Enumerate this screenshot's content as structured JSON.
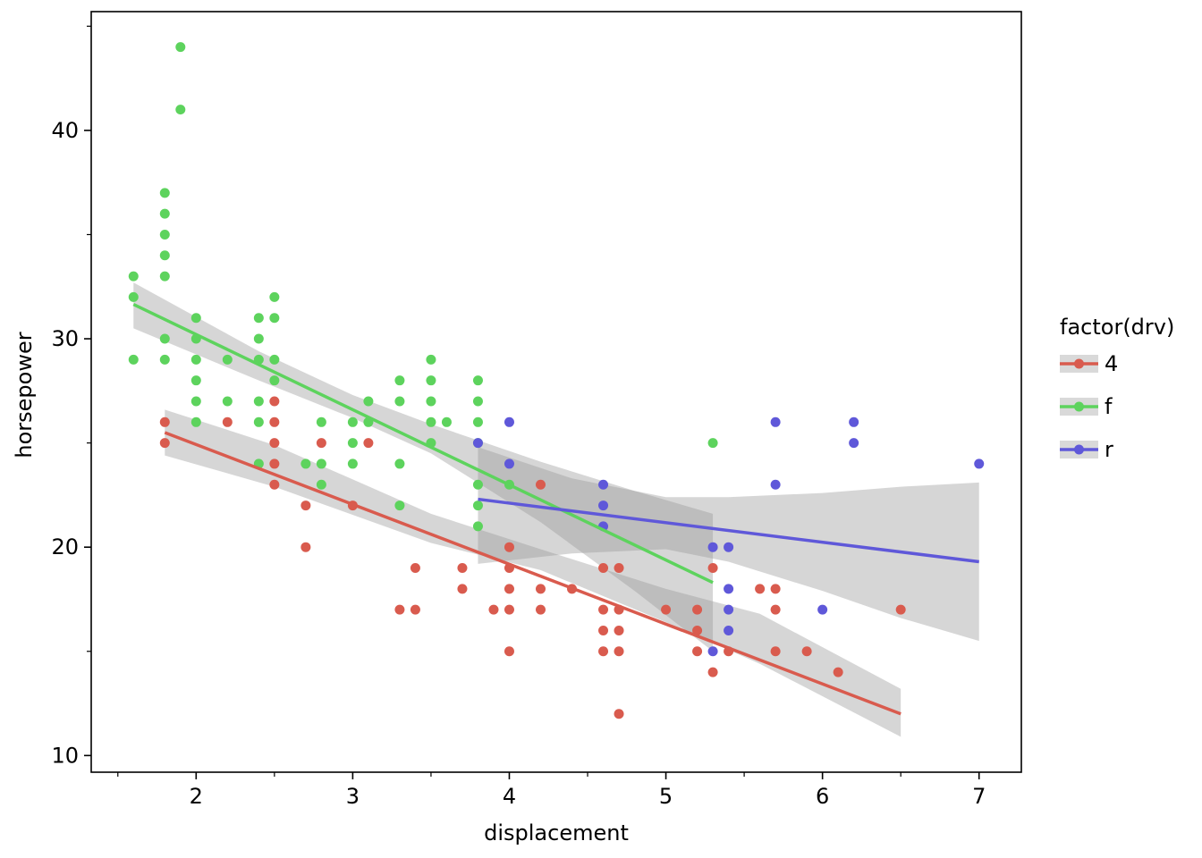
{
  "chart_data": {
    "type": "scatter",
    "title": "",
    "xlabel": "displacement",
    "ylabel": "horsepower",
    "xlim": [
      1.33,
      7.27
    ],
    "ylim": [
      9.2,
      45.7
    ],
    "x_ticks": [
      2,
      3,
      4,
      5,
      6,
      7
    ],
    "x_minor_ticks": [
      1.5,
      2.5,
      3.5,
      4.5,
      5.5,
      6.5
    ],
    "y_ticks": [
      10,
      20,
      30,
      40
    ],
    "y_minor_ticks": [
      15,
      25,
      35,
      45
    ],
    "grid": false,
    "legend": {
      "title": "factor(drv)",
      "position": "right"
    },
    "series": [
      {
        "name": "4",
        "color": "#d95b4e",
        "points": [
          [
            1.8,
            26
          ],
          [
            1.8,
            25
          ],
          [
            2.2,
            26
          ],
          [
            2.5,
            27
          ],
          [
            2.5,
            26
          ],
          [
            2.5,
            25
          ],
          [
            2.5,
            24
          ],
          [
            2.5,
            23
          ],
          [
            2.7,
            22
          ],
          [
            2.7,
            20
          ],
          [
            2.8,
            25
          ],
          [
            3.0,
            22
          ],
          [
            3.1,
            25
          ],
          [
            3.3,
            17
          ],
          [
            3.4,
            19
          ],
          [
            3.4,
            17
          ],
          [
            3.7,
            19
          ],
          [
            3.7,
            18
          ],
          [
            3.9,
            17
          ],
          [
            4.0,
            20
          ],
          [
            4.0,
            19
          ],
          [
            4.0,
            18
          ],
          [
            4.0,
            17
          ],
          [
            4.0,
            15
          ],
          [
            4.2,
            23
          ],
          [
            4.2,
            18
          ],
          [
            4.2,
            17
          ],
          [
            4.4,
            18
          ],
          [
            4.6,
            19
          ],
          [
            4.6,
            17
          ],
          [
            4.6,
            16
          ],
          [
            4.6,
            15
          ],
          [
            4.7,
            19
          ],
          [
            4.7,
            17
          ],
          [
            4.7,
            16
          ],
          [
            4.7,
            15
          ],
          [
            4.7,
            12
          ],
          [
            5.0,
            17
          ],
          [
            5.2,
            17
          ],
          [
            5.2,
            16
          ],
          [
            5.2,
            15
          ],
          [
            5.3,
            19
          ],
          [
            5.3,
            14
          ],
          [
            5.4,
            15
          ],
          [
            5.6,
            18
          ],
          [
            5.7,
            18
          ],
          [
            5.7,
            17
          ],
          [
            5.7,
            15
          ],
          [
            5.9,
            15
          ],
          [
            6.1,
            14
          ],
          [
            6.5,
            17
          ]
        ],
        "fit": {
          "x1": 1.8,
          "y1": 25.5,
          "x2": 6.5,
          "y2": 12.0
        },
        "ci": [
          [
            1.8,
            26.6,
            24.4
          ],
          [
            2.5,
            24.9,
            22.9
          ],
          [
            3.5,
            21.6,
            20.2
          ],
          [
            4.2,
            19.9,
            18.9
          ],
          [
            5.0,
            18.0,
            16.4
          ],
          [
            5.6,
            16.8,
            14.4
          ],
          [
            6.5,
            13.2,
            10.9
          ]
        ]
      },
      {
        "name": "f",
        "color": "#5dd35d",
        "points": [
          [
            1.6,
            33
          ],
          [
            1.6,
            32
          ],
          [
            1.6,
            29
          ],
          [
            1.8,
            37
          ],
          [
            1.8,
            36
          ],
          [
            1.8,
            35
          ],
          [
            1.8,
            34
          ],
          [
            1.8,
            33
          ],
          [
            1.8,
            30
          ],
          [
            1.8,
            29
          ],
          [
            1.9,
            44
          ],
          [
            1.9,
            41
          ],
          [
            2.0,
            31
          ],
          [
            2.0,
            30
          ],
          [
            2.0,
            29
          ],
          [
            2.0,
            28
          ],
          [
            2.0,
            27
          ],
          [
            2.0,
            26
          ],
          [
            2.2,
            29
          ],
          [
            2.2,
            27
          ],
          [
            2.4,
            31
          ],
          [
            2.4,
            30
          ],
          [
            2.4,
            29
          ],
          [
            2.4,
            27
          ],
          [
            2.4,
            26
          ],
          [
            2.4,
            24
          ],
          [
            2.5,
            32
          ],
          [
            2.5,
            31
          ],
          [
            2.5,
            29
          ],
          [
            2.5,
            28
          ],
          [
            2.8,
            26
          ],
          [
            2.8,
            24
          ],
          [
            2.8,
            23
          ],
          [
            2.7,
            24
          ],
          [
            3.0,
            26
          ],
          [
            3.0,
            25
          ],
          [
            3.0,
            24
          ],
          [
            3.1,
            27
          ],
          [
            3.1,
            26
          ],
          [
            3.3,
            28
          ],
          [
            3.3,
            27
          ],
          [
            3.3,
            24
          ],
          [
            3.3,
            22
          ],
          [
            3.5,
            29
          ],
          [
            3.5,
            28
          ],
          [
            3.5,
            27
          ],
          [
            3.5,
            26
          ],
          [
            3.5,
            25
          ],
          [
            3.6,
            26
          ],
          [
            3.8,
            28
          ],
          [
            3.8,
            27
          ],
          [
            3.8,
            26
          ],
          [
            3.8,
            25
          ],
          [
            3.8,
            23
          ],
          [
            3.8,
            22
          ],
          [
            3.8,
            21
          ],
          [
            4.0,
            23
          ],
          [
            5.3,
            25
          ]
        ],
        "fit": {
          "x1": 1.6,
          "y1": 31.65,
          "x2": 5.3,
          "y2": 18.3
        },
        "ci": [
          [
            1.6,
            32.7,
            30.5
          ],
          [
            2.4,
            29.4,
            28.0
          ],
          [
            3.0,
            27.3,
            26.2
          ],
          [
            3.5,
            25.9,
            24.5
          ],
          [
            4.2,
            24.1,
            21.2
          ],
          [
            4.8,
            22.7,
            17.9
          ],
          [
            5.3,
            21.6,
            15.0
          ]
        ]
      },
      {
        "name": "r",
        "color": "#5f58d9",
        "points": [
          [
            3.8,
            25
          ],
          [
            4.0,
            26
          ],
          [
            4.0,
            24
          ],
          [
            4.6,
            23
          ],
          [
            4.6,
            22
          ],
          [
            4.6,
            21
          ],
          [
            5.3,
            20
          ],
          [
            5.3,
            15
          ],
          [
            5.4,
            20
          ],
          [
            5.4,
            18
          ],
          [
            5.4,
            17
          ],
          [
            5.4,
            16
          ],
          [
            5.7,
            26
          ],
          [
            5.7,
            23
          ],
          [
            6.0,
            17
          ],
          [
            6.2,
            26
          ],
          [
            6.2,
            25
          ],
          [
            7.0,
            24
          ]
        ],
        "fit": {
          "x1": 3.8,
          "y1": 22.3,
          "x2": 7.0,
          "y2": 19.3
        },
        "ci": [
          [
            3.8,
            24.8,
            19.2
          ],
          [
            4.4,
            23.3,
            19.7
          ],
          [
            5.0,
            22.4,
            19.9
          ],
          [
            5.4,
            22.4,
            19.3
          ],
          [
            6.0,
            22.6,
            17.9
          ],
          [
            6.5,
            22.9,
            16.6
          ],
          [
            7.0,
            23.1,
            15.5
          ]
        ]
      }
    ]
  }
}
